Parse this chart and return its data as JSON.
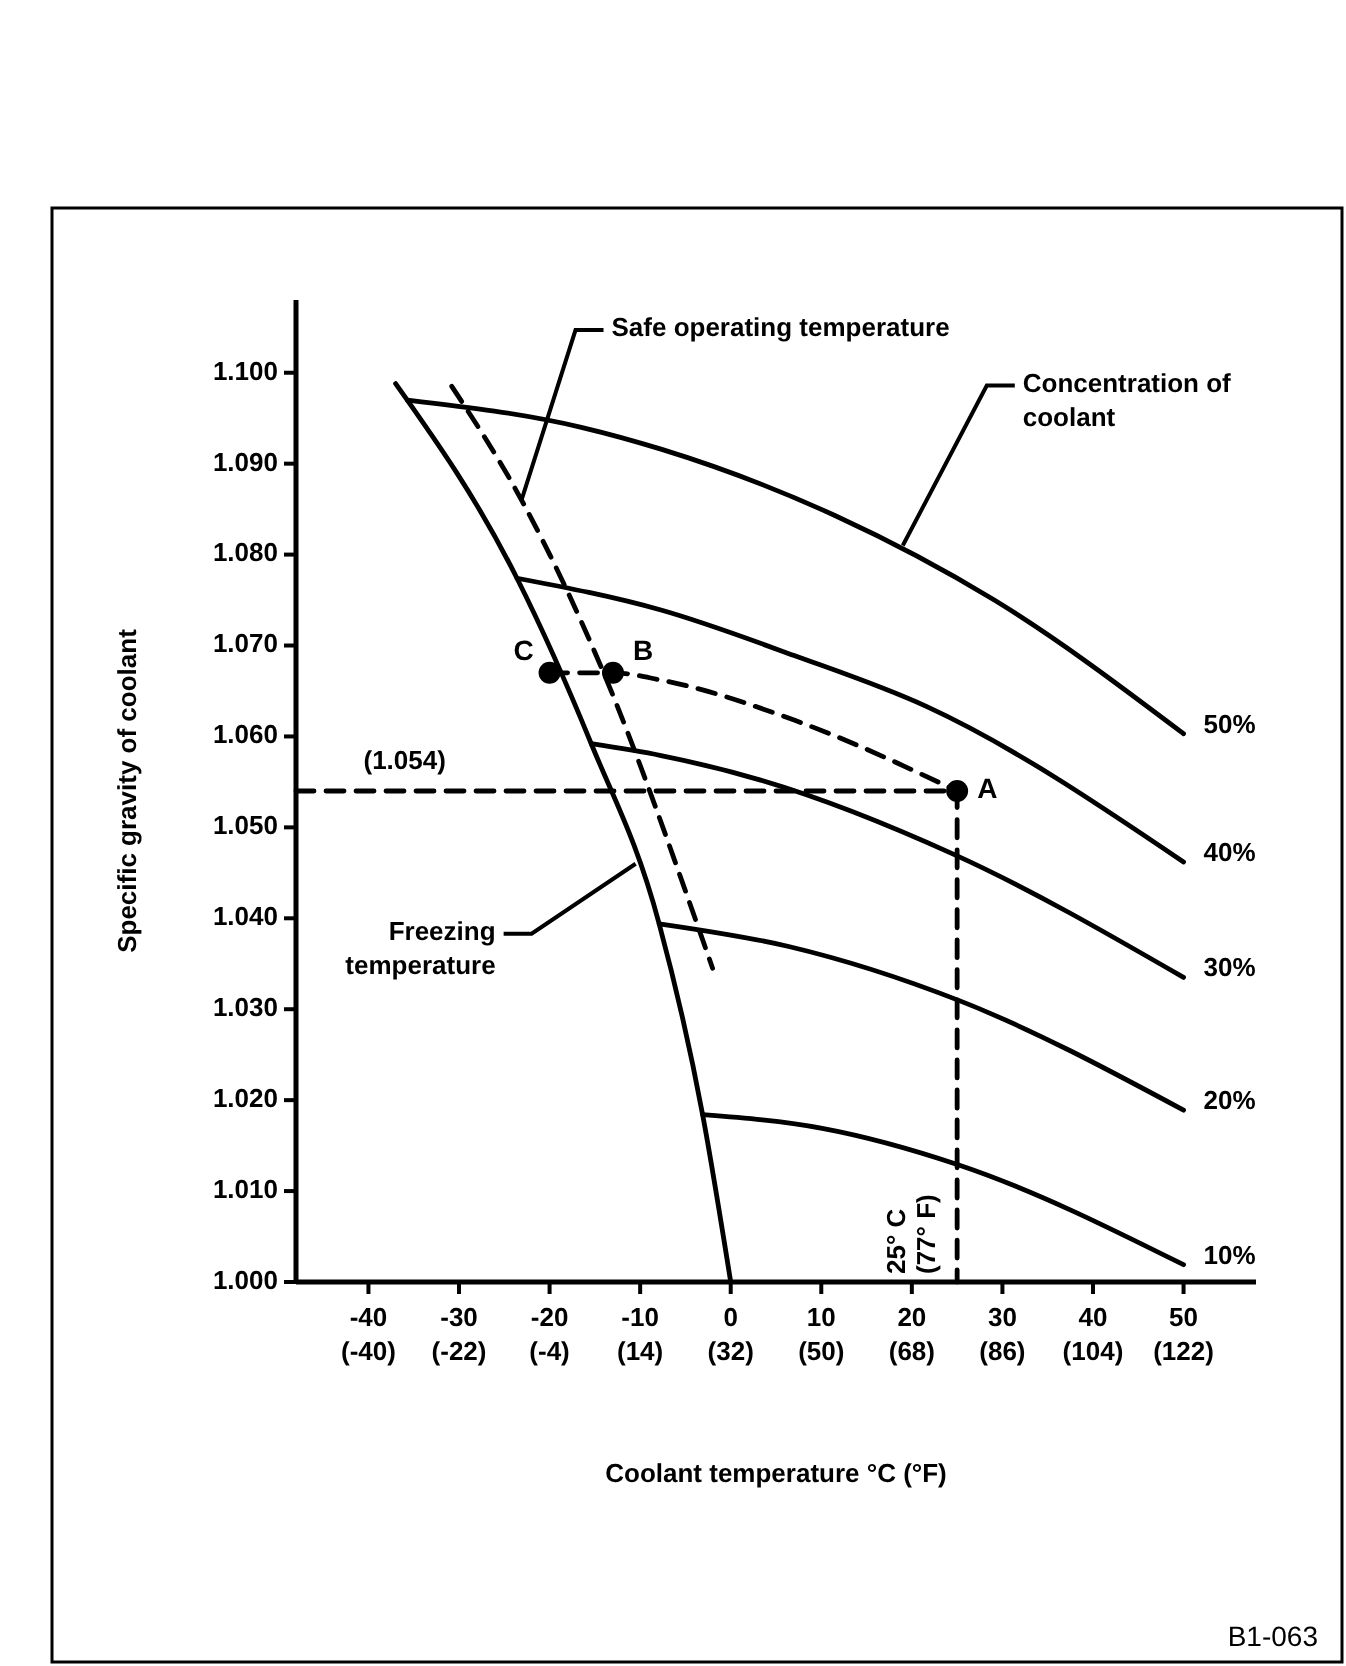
{
  "chart_data": {
    "type": "line",
    "xlabel": "Coolant temperature °C (°F)",
    "ylabel": "Specific gravity of coolant",
    "xlim": [
      -48,
      58
    ],
    "ylim": [
      1.0,
      1.108
    ],
    "xticks": [
      -40,
      -30,
      -20,
      -10,
      0,
      10,
      20,
      30,
      40,
      50
    ],
    "x2lim": [
      -54.4,
      136.4
    ],
    "x2ticks": [
      {
        "value": -40,
        "label": "(-40)"
      },
      {
        "value": -22,
        "label": "(-22)"
      },
      {
        "value": -4,
        "label": "(-4)"
      },
      {
        "value": 14,
        "label": "(14)"
      },
      {
        "value": 32,
        "label": "(32)"
      },
      {
        "value": 50,
        "label": "(50)"
      },
      {
        "value": 68,
        "label": "(68)"
      },
      {
        "value": 86,
        "label": "(86)"
      },
      {
        "value": 104,
        "label": "(104)"
      },
      {
        "value": 122,
        "label": "(122)"
      }
    ],
    "yticks": [
      {
        "value": 1.0,
        "label": "1.000"
      },
      {
        "value": 1.01,
        "label": "1.010"
      },
      {
        "value": 1.02,
        "label": "1.020"
      },
      {
        "value": 1.03,
        "label": "1.030"
      },
      {
        "value": 1.04,
        "label": "1.040"
      },
      {
        "value": 1.05,
        "label": "1.050"
      },
      {
        "value": 1.06,
        "label": "1.060"
      },
      {
        "value": 1.07,
        "label": "1.070"
      },
      {
        "value": 1.08,
        "label": "1.080"
      },
      {
        "value": 1.09,
        "label": "1.090"
      },
      {
        "value": 1.1,
        "label": "1.100"
      }
    ],
    "grid": false,
    "marker": "none",
    "series": [
      {
        "name": "50%",
        "color": "#000000",
        "x": [
          -35.7,
          -16.5,
          -7.7,
          11.5,
          29.1,
          50
        ],
        "values": [
          1.097,
          1.094,
          1.0916,
          1.0843,
          1.075,
          1.0603
        ]
      },
      {
        "name": "40%",
        "color": "#000000",
        "x": [
          -23.6,
          -7.7,
          7,
          21.6,
          50
        ],
        "values": [
          1.0774,
          1.0739,
          1.0689,
          1.0633,
          1.0462
        ]
      },
      {
        "name": "30%",
        "color": "#000000",
        "x": [
          -15.4,
          -7.7,
          3.3,
          24.7,
          50
        ],
        "values": [
          1.0592,
          1.0579,
          1.0552,
          1.047,
          1.0335
        ]
      },
      {
        "name": "20%",
        "color": "#000000",
        "x": [
          -7.9,
          6.4,
          25.1,
          50
        ],
        "values": [
          1.0394,
          1.0369,
          1.031,
          1.0189
        ]
      },
      {
        "name": "10%",
        "color": "#000000",
        "x": [
          -3.1,
          10.1,
          25.1,
          50
        ],
        "values": [
          1.0184,
          1.0169,
          1.0129,
          1.0019
        ]
      },
      {
        "color": "#000000",
        "x": [
          -37,
          -23.6,
          -15.4,
          -7.9,
          -3.1,
          0
        ],
        "values": [
          1.0988,
          1.0774,
          1.0592,
          1.0394,
          1.0184,
          1.0
        ]
      },
      {
        "color": "#000000",
        "line_style": "dashed",
        "x": [
          -30.8,
          -23.1,
          -13.7,
          -3.3,
          -2
        ],
        "values": [
          1.0985,
          1.086,
          1.0662,
          1.0382,
          1.0345
        ]
      },
      {
        "color": "#000000",
        "line_style": "dashed",
        "x": [
          -20,
          -13,
          -7.7,
          7,
          25
        ],
        "values": [
          1.067,
          1.067,
          1.0662,
          1.0618,
          1.054
        ]
      },
      {
        "color": "#000000",
        "line_style": "dashed",
        "x": [
          -48,
          25,
          25
        ],
        "values": [
          1.054,
          1.054,
          1.0
        ]
      },
      {
        "type": "scatter",
        "color": "#000000",
        "marker": "circle",
        "x": [
          25,
          -13,
          -20
        ],
        "values": [
          1.054,
          1.067,
          1.067
        ],
        "value_labels": [
          "A",
          "B",
          "C"
        ]
      }
    ],
    "annotations": [
      {
        "text": "Safe operating temperature",
        "x": -23.1,
        "y": 1.086
      },
      {
        "text": "Concentration of coolant",
        "x": 19,
        "y": 1.081
      },
      {
        "text": "Freezing temperature",
        "x": -10.5,
        "y": 1.046
      },
      {
        "text": "(1.054)",
        "x": -36,
        "y": 1.054
      },
      {
        "text": "25° C (77° F)",
        "x": 25,
        "y": 1.0
      },
      "B1-063"
    ]
  }
}
